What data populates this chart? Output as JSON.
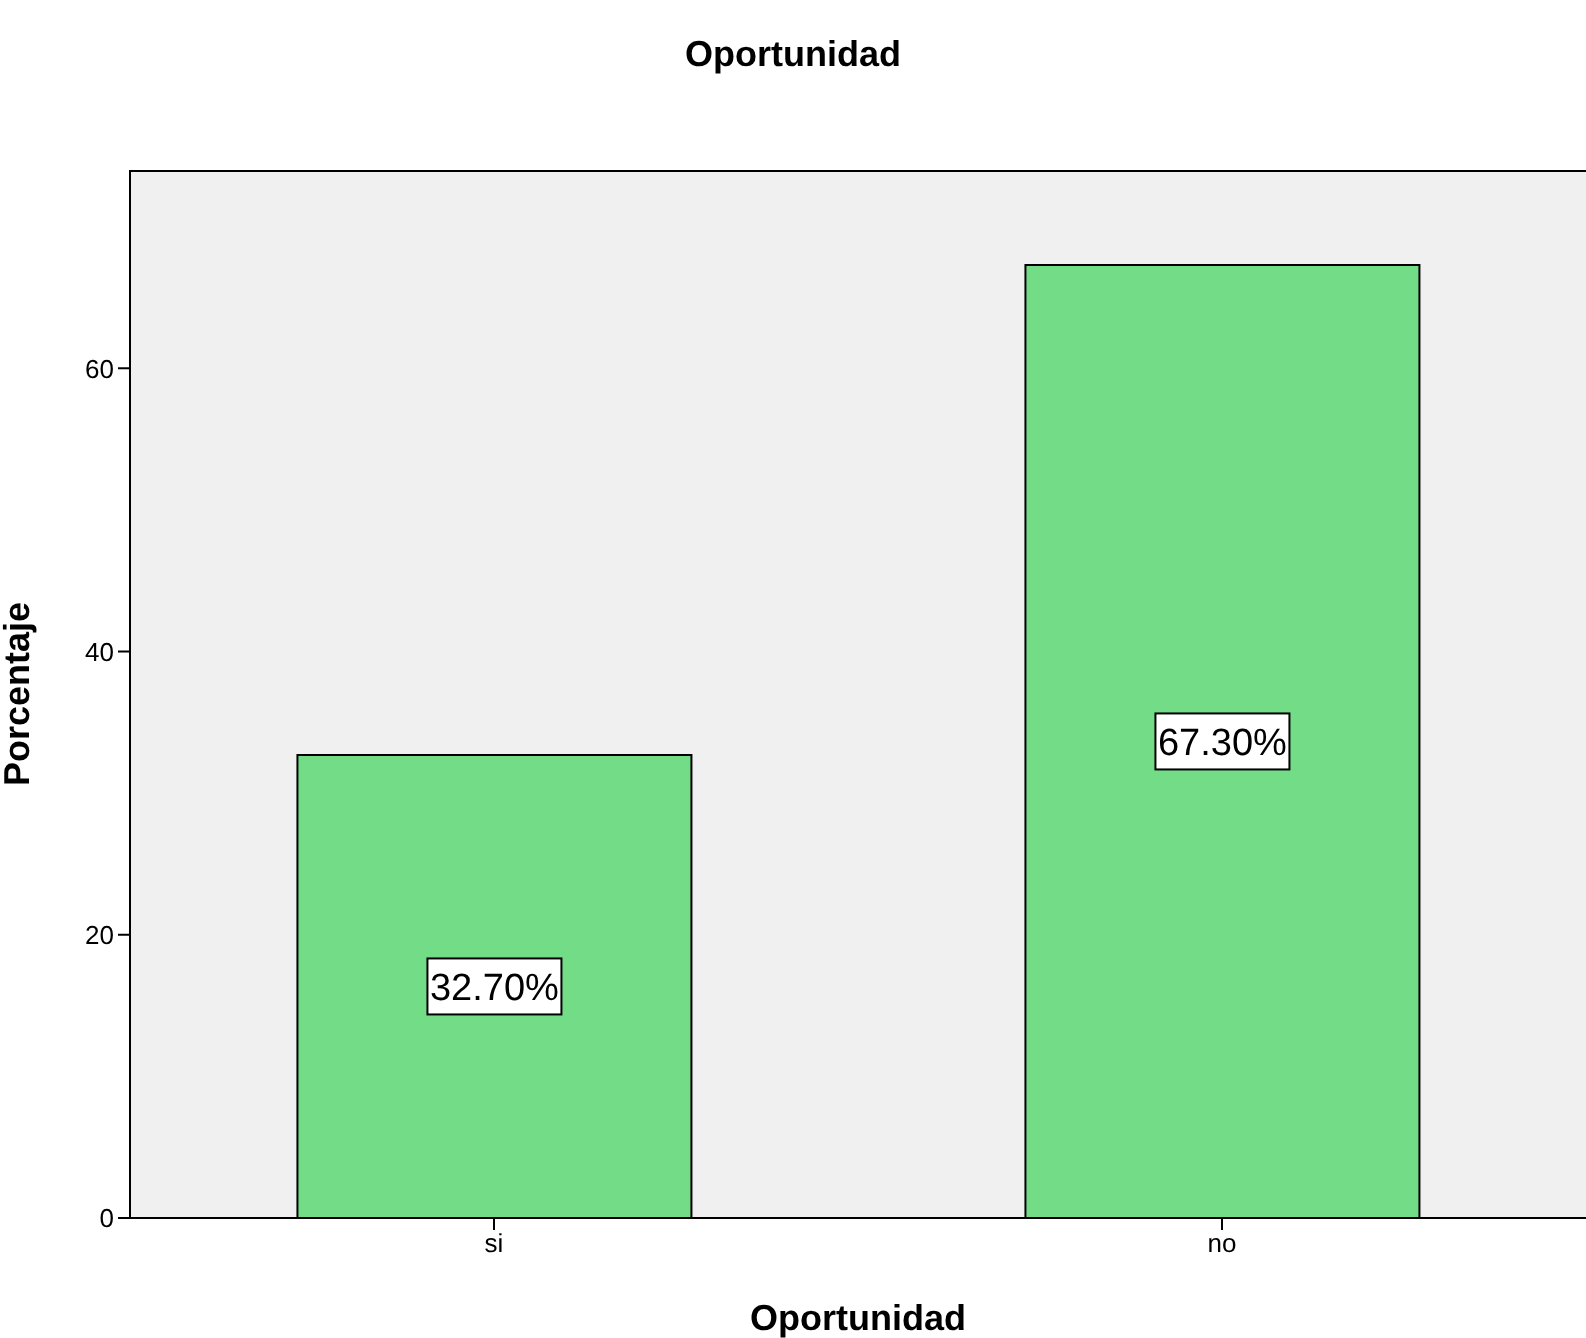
{
  "chart_data": {
    "type": "bar",
    "title": "Oportunidad",
    "xlabel": "Oportunidad",
    "ylabel": "Porcentaje",
    "categories": [
      "si",
      "no"
    ],
    "values": [
      32.7,
      67.3
    ],
    "value_labels": [
      "32.70%",
      "67.30%"
    ],
    "color": "#72dd86",
    "ylim": [
      0,
      74
    ],
    "yticks": [
      0,
      20,
      40,
      60
    ],
    "grid": false
  }
}
